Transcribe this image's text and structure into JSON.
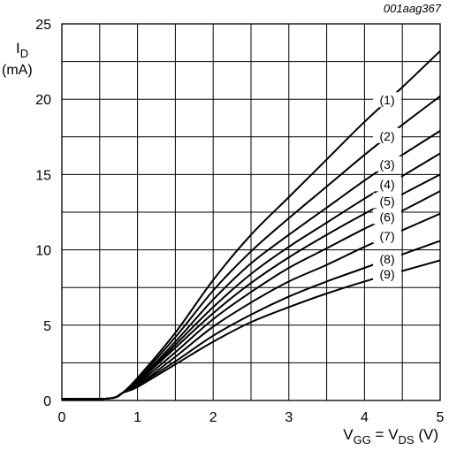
{
  "figure_code": "001aag367",
  "chart_data": {
    "type": "line",
    "ylabel": {
      "main": "I",
      "sub": "D",
      "unit": "(mA)"
    },
    "xlabel": {
      "v1": "V",
      "v1_sub": "GG",
      "eq": " = ",
      "v2": "V",
      "v2_sub": "DS",
      "unit": " (V)"
    },
    "xlim": [
      0,
      5
    ],
    "ylim": [
      0,
      25
    ],
    "x_ticks": [
      "0",
      "1",
      "2",
      "3",
      "4",
      "5"
    ],
    "y_ticks": [
      "0",
      "5",
      "10",
      "15",
      "20",
      "25"
    ],
    "grid": true,
    "x": [
      0,
      0.5,
      0.7,
      0.8,
      1.0,
      1.5,
      2.0,
      2.5,
      3.0,
      3.5,
      4.0,
      4.5,
      5.0
    ],
    "series": [
      {
        "name": "(1)",
        "values": [
          0.1,
          0.1,
          0.2,
          0.5,
          1.5,
          4.5,
          8.0,
          11.0,
          13.5,
          16.0,
          18.5,
          20.8,
          23.2
        ]
      },
      {
        "name": "(2)",
        "values": [
          0.1,
          0.1,
          0.2,
          0.5,
          1.4,
          4.2,
          7.3,
          9.9,
          12.1,
          14.2,
          16.3,
          18.3,
          20.2
        ]
      },
      {
        "name": "(3)",
        "values": [
          0.1,
          0.1,
          0.2,
          0.5,
          1.3,
          3.9,
          6.7,
          9.1,
          11.0,
          12.8,
          14.6,
          16.3,
          17.9
        ]
      },
      {
        "name": "(4)",
        "values": [
          0.1,
          0.1,
          0.2,
          0.5,
          1.2,
          3.7,
          6.2,
          8.4,
          10.2,
          11.8,
          13.4,
          14.9,
          16.4
        ]
      },
      {
        "name": "(5)",
        "values": [
          0.1,
          0.1,
          0.2,
          0.5,
          1.2,
          3.5,
          5.8,
          7.8,
          9.5,
          11.0,
          12.4,
          13.7,
          15.0
        ]
      },
      {
        "name": "(6)",
        "values": [
          0.1,
          0.1,
          0.2,
          0.5,
          1.1,
          3.2,
          5.4,
          7.2,
          8.8,
          10.1,
          11.4,
          12.6,
          13.9
        ]
      },
      {
        "name": "(7)",
        "values": [
          0.1,
          0.1,
          0.2,
          0.5,
          1.0,
          2.9,
          4.9,
          6.5,
          7.9,
          9.0,
          10.2,
          11.3,
          12.4
        ]
      },
      {
        "name": "(8)",
        "values": [
          0.1,
          0.1,
          0.2,
          0.5,
          1.0,
          2.6,
          4.3,
          5.7,
          6.9,
          7.9,
          8.8,
          9.7,
          10.6
        ]
      },
      {
        "name": "(9)",
        "values": [
          0.1,
          0.1,
          0.2,
          0.5,
          0.9,
          2.4,
          3.9,
          5.2,
          6.2,
          7.1,
          7.9,
          8.6,
          9.3
        ]
      }
    ]
  }
}
